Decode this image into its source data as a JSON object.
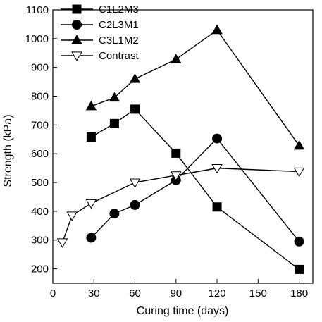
{
  "chart_data": {
    "type": "line",
    "xlabel": "Curing time (days)",
    "ylabel": "Strength (kPa)",
    "xlim": [
      0,
      190
    ],
    "ylim": [
      150,
      1100
    ],
    "xticks": [
      0,
      30,
      60,
      90,
      120,
      150,
      180
    ],
    "yticks": [
      200,
      300,
      400,
      500,
      600,
      700,
      800,
      900,
      1000,
      1100
    ],
    "grid": false,
    "legend_position": "top-left",
    "series": [
      {
        "name": "C1L2M3",
        "marker": "square-filled",
        "x": [
          28,
          45,
          60,
          90,
          120,
          180
        ],
        "y": [
          658,
          705,
          755,
          602,
          415,
          198
        ]
      },
      {
        "name": "C2L3M1",
        "marker": "circle-filled",
        "x": [
          28,
          45,
          60,
          90,
          120,
          180
        ],
        "y": [
          308,
          392,
          422,
          508,
          653,
          295
        ]
      },
      {
        "name": "C3L1M2",
        "marker": "triangle-up-filled",
        "x": [
          28,
          45,
          60,
          90,
          120,
          180
        ],
        "y": [
          765,
          795,
          860,
          928,
          1030,
          628
        ]
      },
      {
        "name": "Contrast",
        "marker": "triangle-down-open",
        "x": [
          7,
          14,
          28,
          60,
          90,
          120,
          180
        ],
        "y": [
          292,
          385,
          428,
          500,
          525,
          550,
          538
        ]
      }
    ]
  }
}
